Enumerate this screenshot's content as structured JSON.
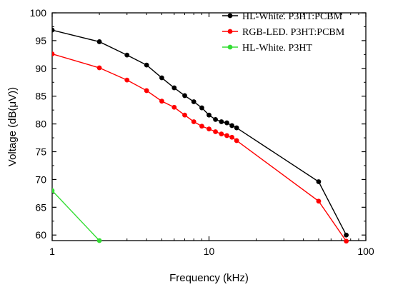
{
  "chart_data": {
    "type": "line",
    "xlabel": "Frequency (kHz)",
    "ylabel": "Voltage (dB(μV))",
    "x_scale": "log",
    "xlim": [
      1,
      100
    ],
    "ylim": [
      59,
      100
    ],
    "x_ticks": [
      1,
      10,
      100
    ],
    "x_tick_labels": [
      "1",
      "10",
      "100"
    ],
    "y_ticks": [
      60,
      65,
      70,
      75,
      80,
      85,
      90,
      95,
      100
    ],
    "y_tick_labels": [
      "60",
      "65",
      "70",
      "75",
      "80",
      "85",
      "90",
      "95",
      "100"
    ],
    "grid": false,
    "legend_position": "top-right",
    "series": [
      {
        "name": "HL-White. P3HT:PCBM",
        "color": "#000000",
        "marker": "circle",
        "x": [
          1,
          2,
          3,
          4,
          5,
          6,
          7,
          8,
          9,
          10,
          11,
          12,
          13,
          14,
          15,
          50,
          75
        ],
        "y": [
          96.9,
          94.8,
          92.4,
          90.6,
          88.3,
          86.5,
          85.1,
          84.0,
          82.9,
          81.6,
          80.8,
          80.4,
          80.2,
          79.7,
          79.3,
          69.6,
          60.0
        ]
      },
      {
        "name": "RGB-LED. P3HT:PCBM",
        "color": "#ff0000",
        "marker": "circle",
        "x": [
          1,
          2,
          3,
          4,
          5,
          6,
          7,
          8,
          9,
          10,
          11,
          12,
          13,
          14,
          15,
          50,
          75
        ],
        "y": [
          92.6,
          90.1,
          87.9,
          86.0,
          84.1,
          83.0,
          81.6,
          80.4,
          79.6,
          79.1,
          78.6,
          78.2,
          77.9,
          77.6,
          77.0,
          66.1,
          58.9
        ]
      },
      {
        "name": "HL-White. P3HT",
        "color": "#33dd33",
        "marker": "circle",
        "x": [
          1,
          2
        ],
        "y": [
          68.0,
          59.0
        ]
      }
    ]
  }
}
